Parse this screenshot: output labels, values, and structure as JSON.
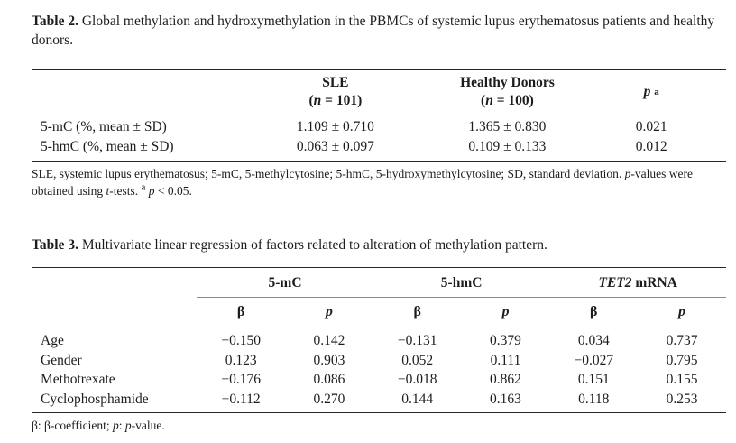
{
  "colors": {
    "background": "#ffffff",
    "text": "#1c1c1c",
    "rule_dark": "#262626",
    "rule_gray": "#6b6b6b"
  },
  "table2": {
    "caption": {
      "label": "Table 2.",
      "text": "Global methylation and hydroxymethylation in the PBMCs of systemic lupus erythematosus patients and healthy donors."
    },
    "header": {
      "col_sle": {
        "name": "SLE",
        "n_open": "(",
        "n_italic": "n",
        "n_rest": " = 101)"
      },
      "col_healthy": {
        "name": "Healthy Donors",
        "n_open": "(",
        "n_italic": "n",
        "n_rest": " = 100)"
      },
      "col_p": {
        "p": "p",
        "sup": "a"
      }
    },
    "rows": [
      {
        "label": "5-mC (%, mean ± SD)",
        "sle": "1.109 ± 0.710",
        "healthy": "1.365 ± 0.830",
        "p": "0.021"
      },
      {
        "label": "5-hmC (%, mean ± SD)",
        "sle": "0.063 ± 0.097",
        "healthy": "0.109 ± 0.133",
        "p": "0.012"
      }
    ],
    "footnote": {
      "seg1": "SLE, systemic lupus erythematosus; 5-mC, 5-methylcytosine; 5-hmC, 5-hydroxymethylcytosine; SD, standard deviation. ",
      "p1": "p",
      "seg2": "-values were obtained using ",
      "t1": "t",
      "seg3": "-tests. ",
      "sup_a": "a",
      "p2": "p",
      "seg4": " < 0.05."
    }
  },
  "table3": {
    "caption": {
      "label": "Table 3.",
      "text": "Multivariate linear regression of factors related to alteration of methylation pattern."
    },
    "group_headers": {
      "g1": "5-mC",
      "g2": "5-hmC",
      "g3_italic": "TET2",
      "g3_rest": " mRNA"
    },
    "subheader": {
      "beta": "β",
      "p": "p"
    },
    "rows": [
      {
        "label": "Age",
        "values": [
          "−0.150",
          "0.142",
          "−0.131",
          "0.379",
          "0.034",
          "0.737"
        ]
      },
      {
        "label": "Gender",
        "values": [
          "0.123",
          "0.903",
          "0.052",
          "0.111",
          "−0.027",
          "0.795"
        ]
      },
      {
        "label": "Methotrexate",
        "values": [
          "−0.176",
          "0.086",
          "−0.018",
          "0.862",
          "0.151",
          "0.155"
        ]
      },
      {
        "label": "Cyclophosphamide",
        "values": [
          "−0.112",
          "0.270",
          "0.144",
          "0.163",
          "0.118",
          "0.253"
        ]
      }
    ],
    "footnote": {
      "seg1": "β: β-coefficient; ",
      "p1": "p",
      "seg2": ": ",
      "p2": "p",
      "seg3": "-value."
    }
  }
}
